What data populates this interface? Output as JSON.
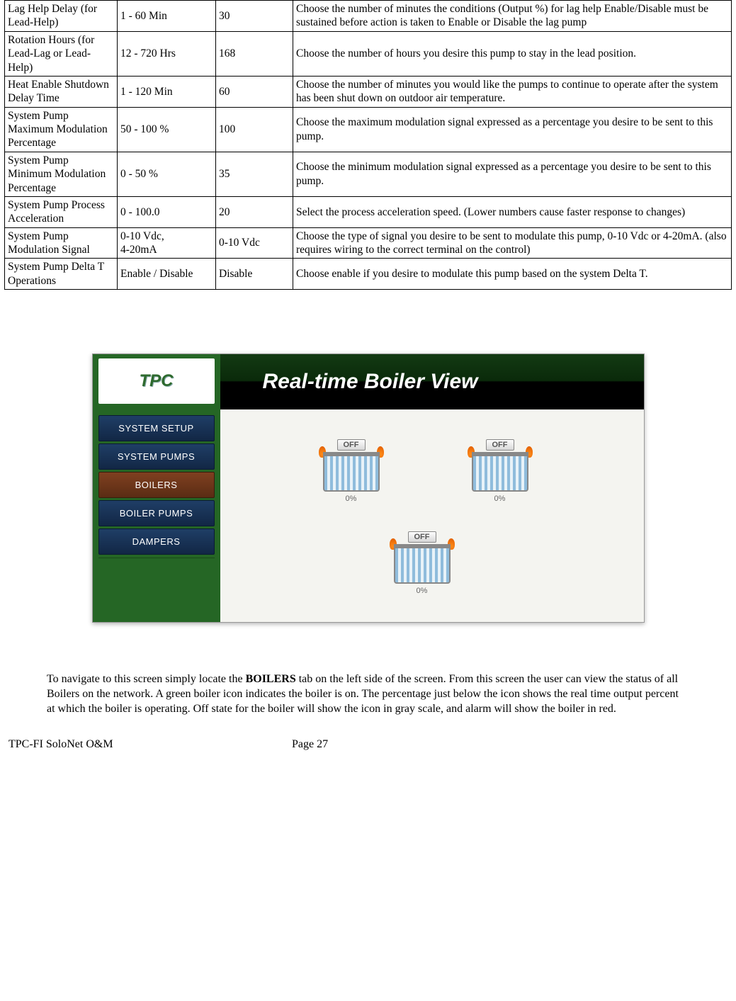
{
  "table": {
    "rows": [
      {
        "param": "Lag Help Delay (for Lead-Help)",
        "range": "1 - 60 Min",
        "default": "30",
        "desc": "Choose the number of minutes the conditions (Output %) for lag help Enable/Disable must be sustained before action is taken to Enable or Disable the lag pump"
      },
      {
        "param": "Rotation Hours (for Lead-Lag or Lead-Help)",
        "range": "12 - 720 Hrs",
        "default": "168",
        "desc": "Choose the number of hours you desire this pump to stay in the lead position."
      },
      {
        "param": "Heat Enable Shutdown Delay Time",
        "range": "1 - 120 Min",
        "default": "60",
        "desc": "Choose the number of minutes you would like the pumps to continue to operate after the system has been shut down on outdoor air temperature."
      },
      {
        "param": "System Pump Maximum Modulation Percentage",
        "range": "50 - 100 %",
        "default": "100",
        "desc": "Choose the maximum  modulation signal expressed as a percentage you desire to be sent to this pump."
      },
      {
        "param": "System Pump Minimum Modulation Percentage",
        "range": "0 - 50 %",
        "default": "35",
        "desc": "Choose the minimum modulation signal expressed as a percentage you desire to be sent to this pump."
      },
      {
        "param": "System Pump Process Acceleration",
        "range": "0 - 100.0",
        "default": "20",
        "desc": "Select the process acceleration speed.  (Lower numbers cause faster response to changes)"
      },
      {
        "param": "System Pump Modulation Signal",
        "range": "0-10 Vdc,\n4-20mA",
        "default": "0-10 Vdc",
        "desc": "Choose the type of signal you desire to be sent to modulate this pump, 0-10 Vdc or 4-20mA.  (also requires wiring to the correct terminal on the control)"
      },
      {
        "param": "System Pump Delta T Operations",
        "range": "Enable / Disable",
        "default": "Disable",
        "desc": "Choose enable if you desire to modulate this pump based on the system Delta T."
      }
    ]
  },
  "screenshot": {
    "logo": "TPC",
    "banner": "Real-time Boiler View",
    "nav": [
      "SYSTEM SETUP",
      "SYSTEM PUMPS",
      "BOILERS",
      "BOILER PUMPS",
      "DAMPERS"
    ],
    "active_index": 2,
    "boilers": [
      {
        "status": "OFF",
        "pct": "0%"
      },
      {
        "status": "OFF",
        "pct": "0%"
      },
      {
        "status": "OFF",
        "pct": "0%"
      }
    ]
  },
  "paragraph": {
    "pre": "To navigate to this screen simply locate the ",
    "bold": "BOILERS",
    "post": " tab on the left side of the screen.  From this screen the user can view the status of all Boilers on the network.  A green boiler icon indicates the boiler is on.  The percentage just below the icon shows the real time output percent at which the boiler is operating.  Off state for the boiler will show the icon in gray scale, and alarm will show the boiler in red."
  },
  "footer": {
    "left": "TPC-FI SoloNet O&M",
    "center": "Page 27"
  }
}
